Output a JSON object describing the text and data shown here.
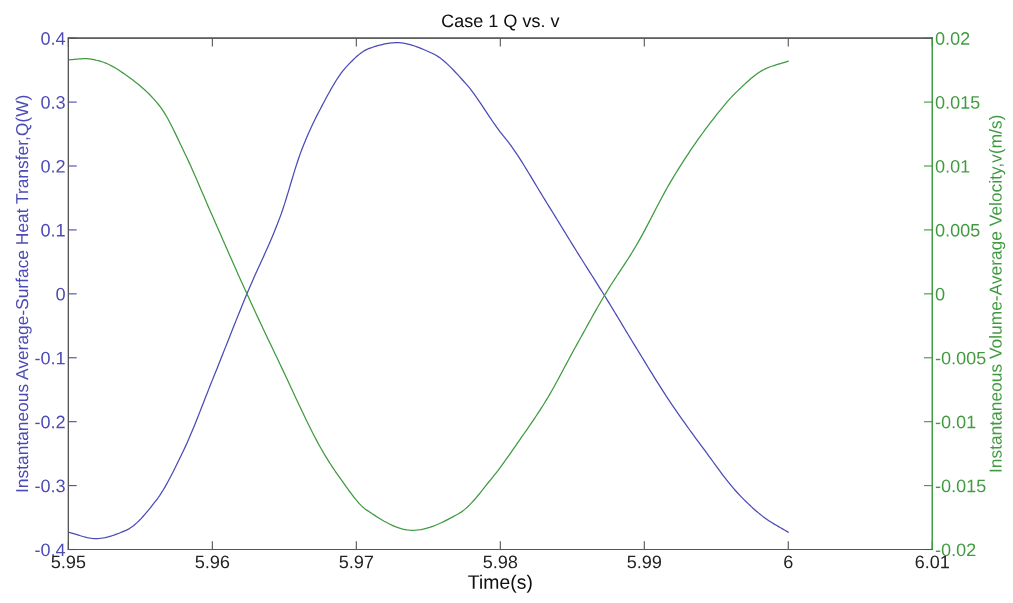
{
  "chart_data": {
    "type": "line",
    "title": "Case 1 Q vs. v",
    "xlabel": "Time(s)",
    "ylabel": "Instantaneous Average-Surface Heat Transfer,Q(W)",
    "y2label": "Instantaneous Volume-Average Velocity,v(m/s)",
    "xlim": [
      5.95,
      6.01
    ],
    "xticks": [
      5.95,
      5.96,
      5.97,
      5.98,
      5.99,
      6,
      6.01
    ],
    "ylim": [
      -0.4,
      0.4
    ],
    "yticks": [
      -0.4,
      -0.3,
      -0.2,
      -0.1,
      0,
      0.1,
      0.2,
      0.3,
      0.4
    ],
    "y2lim": [
      -0.02,
      0.02
    ],
    "y2ticks": [
      -0.02,
      -0.015,
      -0.01,
      -0.005,
      0,
      0.005,
      0.01,
      0.015,
      0.02
    ],
    "series": [
      {
        "color": "#4a4ab8",
        "x": [
          5.95,
          5.9519,
          5.954,
          5.9561,
          5.958,
          5.96,
          5.9624,
          5.9647,
          5.9662,
          5.9674,
          5.9693,
          5.9709,
          5.9728,
          5.9753,
          5.9776,
          5.9799,
          5.9808,
          5.9831,
          5.9854,
          5.9873,
          5.9894,
          5.9917,
          5.9942,
          5.9965,
          5.9984,
          6.0
        ],
        "values": [
          -0.373,
          -0.383,
          -0.37,
          -0.323,
          -0.245,
          -0.135,
          0.0,
          0.12,
          0.225,
          0.285,
          0.355,
          0.384,
          0.393,
          0.376,
          0.329,
          0.256,
          0.23,
          0.147,
          0.063,
          -0.005,
          -0.083,
          -0.166,
          -0.245,
          -0.312,
          -0.351,
          -0.373
        ]
      },
      {
        "color": "#3f9a3f",
        "axis": "y2",
        "x": [
          5.95,
          5.9512,
          5.9522,
          5.9545,
          5.9564,
          5.958,
          5.96,
          5.9624,
          5.9647,
          5.9676,
          5.9688,
          5.9707,
          5.9739,
          5.9771,
          5.9795,
          5.9813,
          5.9832,
          5.9852,
          5.9873,
          5.9894,
          5.9919,
          5.9942,
          5.9965,
          5.9984,
          6.0
        ],
        "values": [
          0.0183,
          0.0184,
          0.0182,
          0.0167,
          0.0146,
          0.0112,
          0.0061,
          0.0,
          -0.0055,
          -0.0122,
          -0.0143,
          -0.0169,
          -0.0185,
          -0.0172,
          -0.0143,
          -0.0115,
          -0.0083,
          -0.0042,
          0.0,
          0.0037,
          0.0089,
          0.0128,
          0.0159,
          0.0176,
          0.0182
        ]
      }
    ]
  }
}
